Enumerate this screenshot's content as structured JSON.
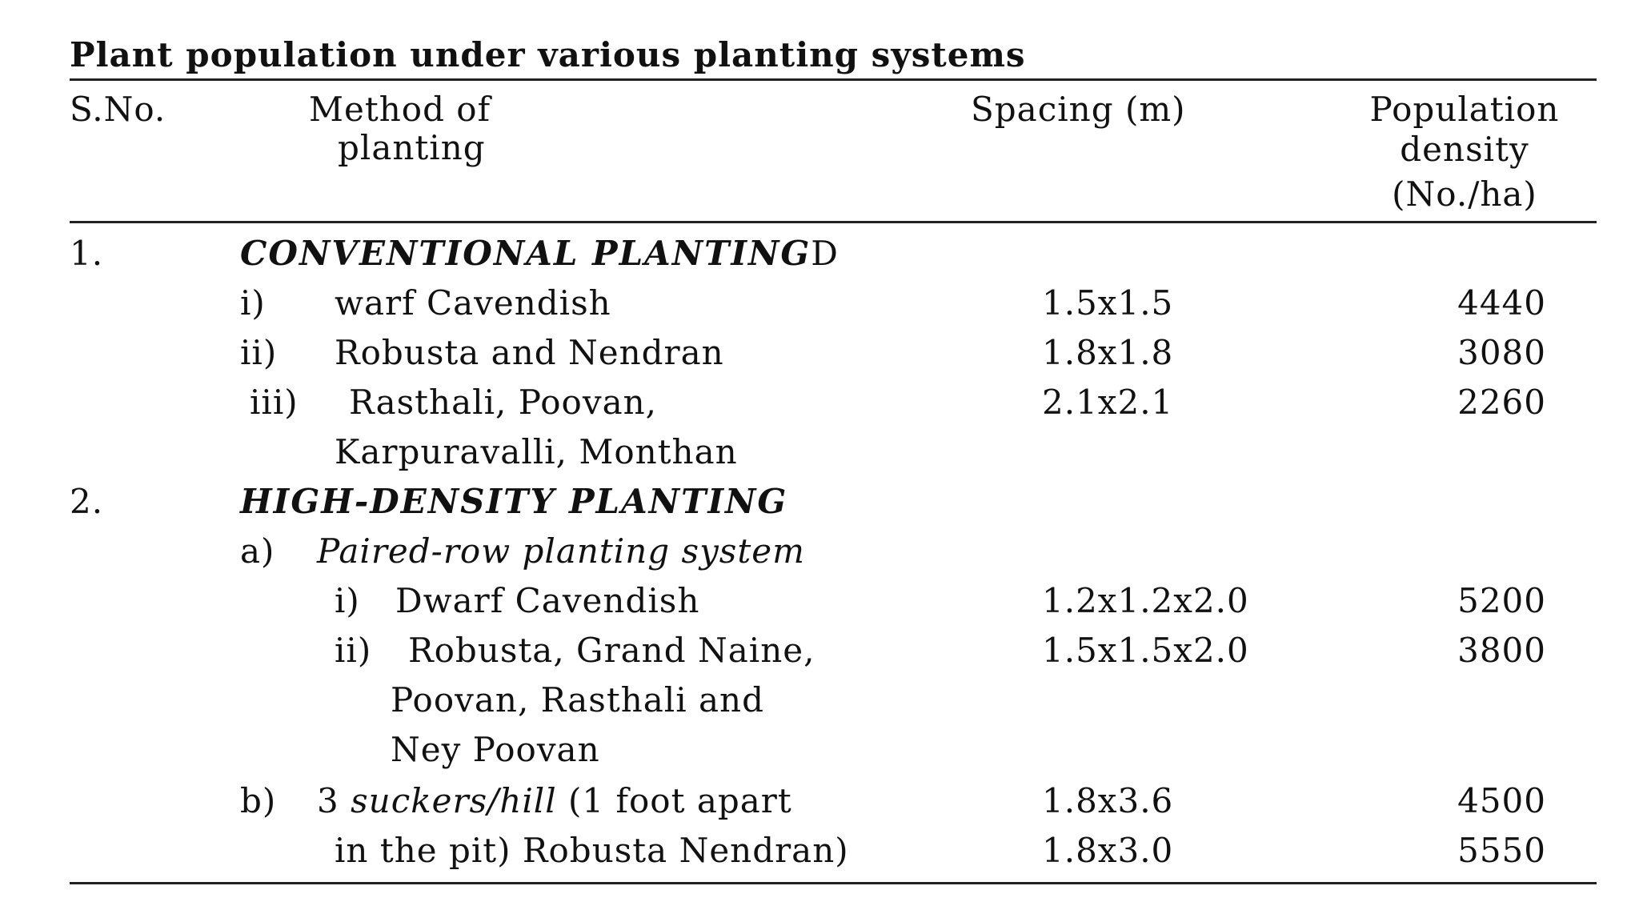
{
  "title": "Plant population under various planting systems",
  "headers": {
    "sno": "S.No.",
    "method_line1": "Method of",
    "method_line2": "planting",
    "spacing": "Spacing (m)",
    "pop_line1": "Population",
    "pop_line2": "density",
    "pop_line3": "(No./ha)"
  },
  "sections": [
    {
      "no": "1.",
      "title": "CONVENTIONAL PLANTING",
      "title_tail": "D",
      "rows": [
        {
          "label": "i)",
          "lines": [
            "warf Cavendish"
          ],
          "spacing": "1.5x1.5",
          "density": "4440"
        },
        {
          "label": "ii)",
          "lines": [
            "Robusta and Nendran"
          ],
          "spacing": "1.8x1.8",
          "density": "3080"
        },
        {
          "label": "iii)",
          "lines": [
            "Rasthali, Poovan,",
            "Karpuravalli, Monthan"
          ],
          "spacing": "2.1x2.1",
          "density": "2260"
        }
      ]
    },
    {
      "no": "2.",
      "title": "HIGH-DENSITY PLANTING",
      "subsections": [
        {
          "label": "a)",
          "title": "Paired-row planting system",
          "rows": [
            {
              "label": "i)",
              "lines": [
                "Dwarf Cavendish"
              ],
              "spacing": "1.2x1.2x2.0",
              "density": "5200"
            },
            {
              "label": "ii)",
              "lines": [
                "Robusta, Grand Naine,",
                "Poovan, Rasthali and",
                "Ney Poovan"
              ],
              "spacing": "1.5x1.5x2.0",
              "density": "3800"
            }
          ]
        },
        {
          "label": "b)",
          "num": "3",
          "italic": "suckers/hill",
          "rest": "(1 foot apart",
          "line2": "in the pit) Robusta Nendran)",
          "spacing1": "1.8x3.6",
          "density1": "4500",
          "spacing2": "1.8x3.0",
          "density2": "5550"
        }
      ]
    }
  ]
}
